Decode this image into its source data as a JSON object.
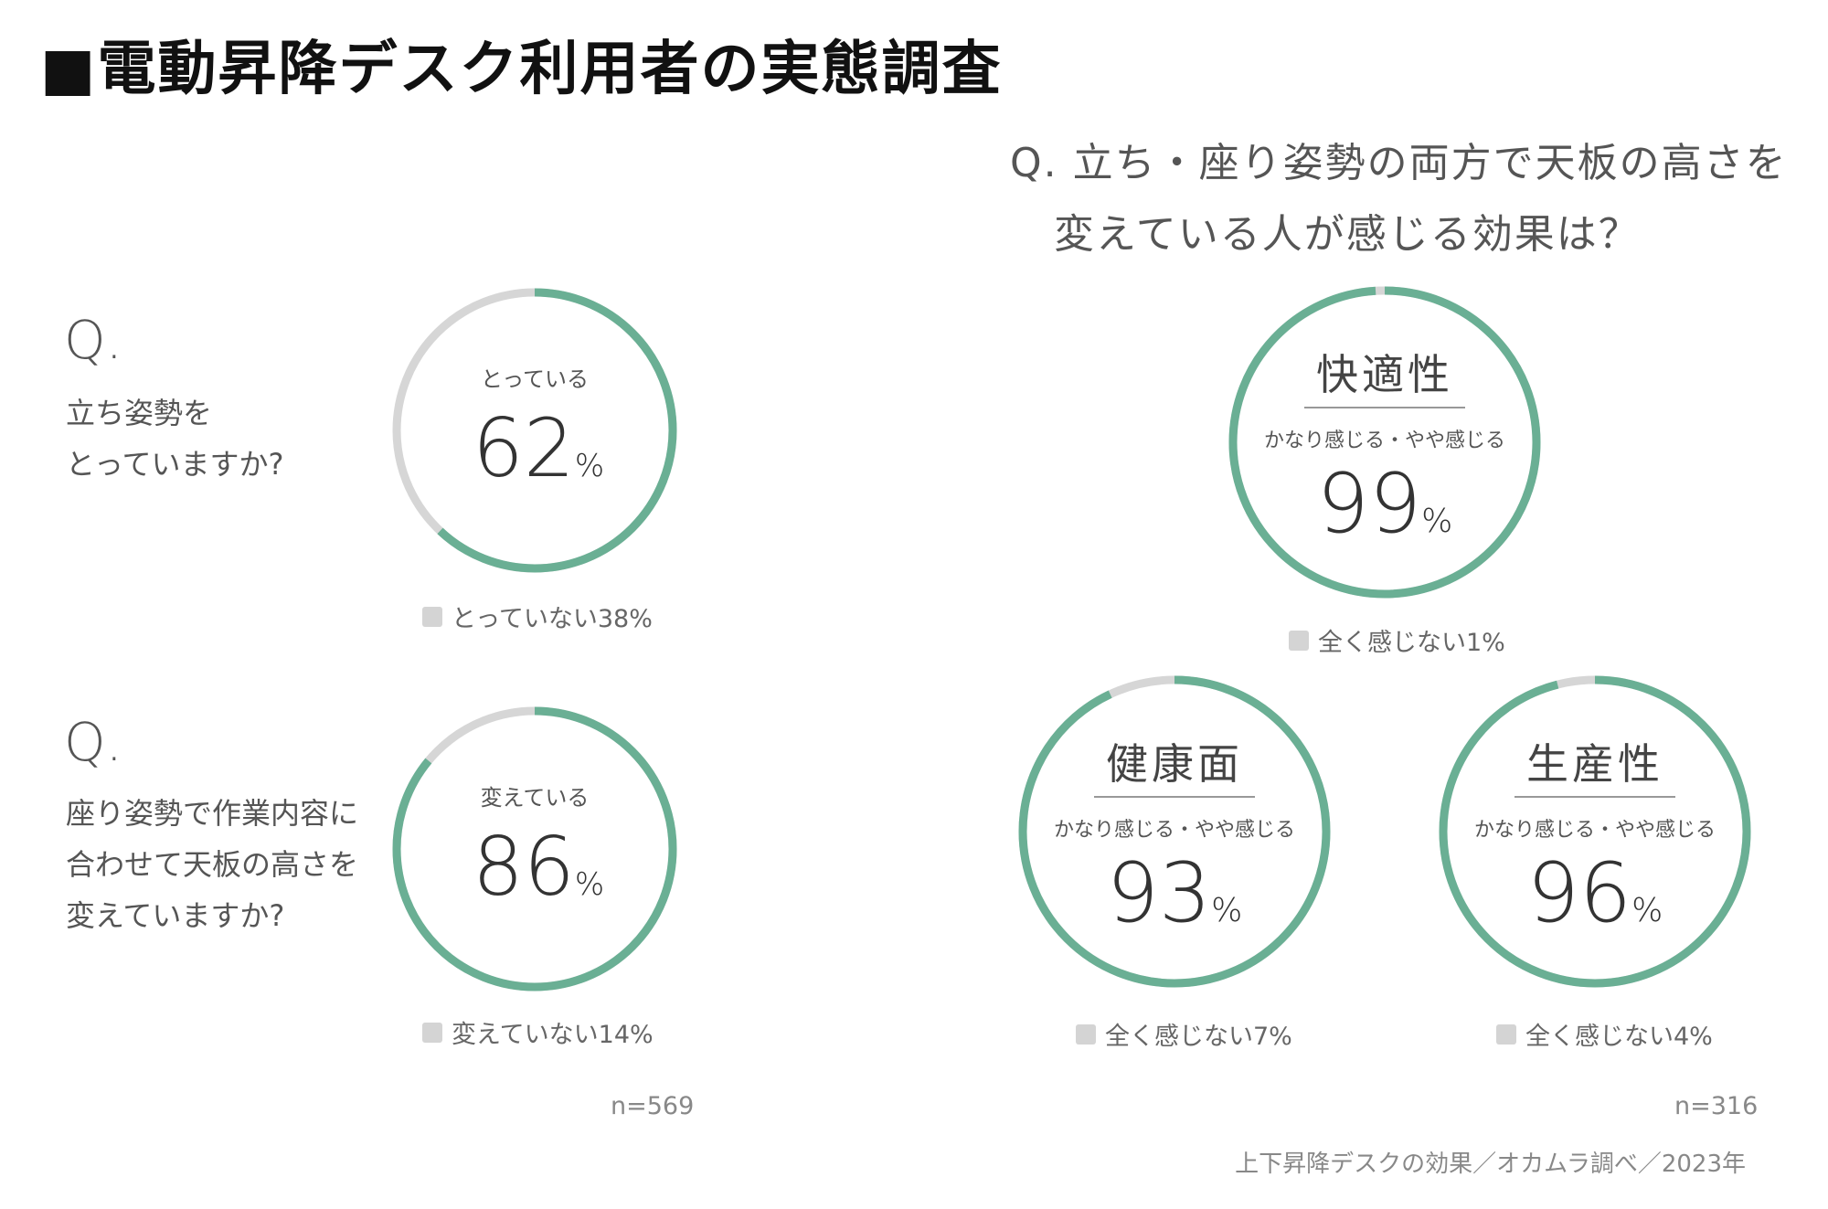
{
  "title": "■電動昇降デスク利用者の実態調査",
  "colors": {
    "accent": "#6aaf94",
    "rest": "#d6d6d6",
    "text": "#444444"
  },
  "left": {
    "questions": [
      {
        "q": "Q.",
        "lines": [
          "立ち姿勢を",
          "とっていますか?"
        ]
      },
      {
        "q": "Q.",
        "lines": [
          "座り姿勢で作業内容に",
          "合わせて天板の高さを",
          "変えていますか?"
        ]
      }
    ],
    "n": "n=569"
  },
  "right": {
    "question": [
      "Q. 立ち・座り姿勢の両方で天板の高さを",
      "変えている人が感じる効果は？"
    ],
    "n": "n=316"
  },
  "source": "上下昇降デスクの効果／オカムラ調べ／2023年",
  "chart_data": [
    {
      "type": "pie",
      "title": "",
      "label": "とっている",
      "value": 62,
      "unit": "%",
      "rest_label": "とっていない",
      "rest_value": 38,
      "legend": "とっていない38%"
    },
    {
      "type": "pie",
      "title": "",
      "label": "変えている",
      "value": 86,
      "unit": "%",
      "rest_label": "変えていない",
      "rest_value": 14,
      "legend": "変えていない14%"
    },
    {
      "type": "pie",
      "title": "快適性",
      "label": "かなり感じる・やや感じる",
      "value": 99,
      "unit": "%",
      "rest_label": "全く感じない",
      "rest_value": 1,
      "legend": "全く感じない1%"
    },
    {
      "type": "pie",
      "title": "健康面",
      "label": "かなり感じる・やや感じる",
      "value": 93,
      "unit": "%",
      "rest_label": "全く感じない",
      "rest_value": 7,
      "legend": "全く感じない7%"
    },
    {
      "type": "pie",
      "title": "生産性",
      "label": "かなり感じる・やや感じる",
      "value": 96,
      "unit": "%",
      "rest_label": "全く感じない",
      "rest_value": 4,
      "legend": "全く感じない4%"
    }
  ]
}
